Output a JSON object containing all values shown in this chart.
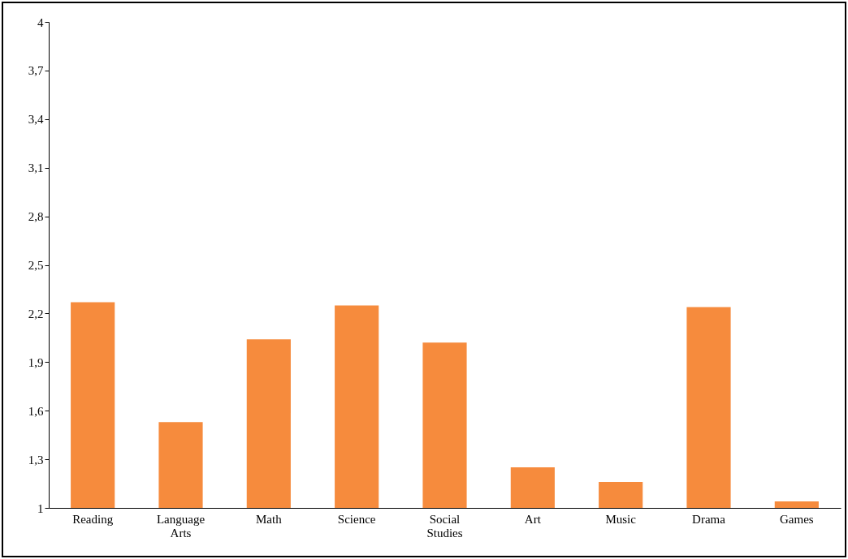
{
  "chart_data": {
    "type": "bar",
    "categories": [
      "Reading",
      "Language Arts",
      "Math",
      "Science",
      "Social Studies",
      "Art",
      "Music",
      "Drama",
      "Games"
    ],
    "values": [
      2.27,
      1.53,
      2.04,
      2.25,
      2.02,
      1.25,
      1.16,
      2.24,
      1.04
    ],
    "color": "#f68b3d",
    "ylim": [
      1,
      4
    ],
    "yticks": [
      1,
      {
        "value": 1.3,
        "label": "1,3"
      },
      {
        "value": 1.6,
        "label": "1,6"
      },
      {
        "value": 1.9,
        "label": "1,9"
      },
      {
        "value": 2.2,
        "label": "2,2"
      },
      {
        "value": 2.5,
        "label": "2,5"
      },
      {
        "value": 2.8,
        "label": "2,8"
      },
      {
        "value": 3.1,
        "label": "3,1"
      },
      {
        "value": 3.4,
        "label": "3,4"
      },
      {
        "value": 3.7,
        "label": "3,7"
      },
      4
    ],
    "grid": false
  }
}
